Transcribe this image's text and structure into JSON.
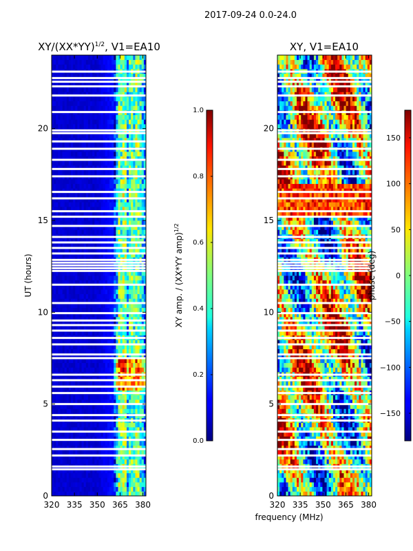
{
  "figure": {
    "suptitle": "2017-09-24 0.0-24.0"
  },
  "chart_data": [
    {
      "type": "heatmap",
      "title_main": "XY/(XX*YY)",
      "title_exp": "1/2",
      "title_tail": ", V1=EA10",
      "xlabel": "",
      "ylabel": "UT (hours)",
      "xlim": [
        320,
        382
      ],
      "ylim": [
        0,
        24
      ],
      "xticks": [
        320,
        335,
        350,
        365,
        380
      ],
      "xtick_labels": [
        "320",
        "335",
        "350",
        "365",
        "380"
      ],
      "yticks": [
        0,
        5,
        10,
        15,
        20
      ],
      "ytick_labels": [
        "0",
        "5",
        "10",
        "15",
        "20"
      ],
      "colorbar": {
        "label_main": "XY amp. / (XX*YY amp)",
        "label_exp": "1/2",
        "range": [
          0.0,
          1.0
        ],
        "ticks": [
          0.0,
          0.2,
          0.4,
          0.6,
          0.8,
          1.0
        ],
        "tick_labels": [
          "0.0",
          "0.2",
          "0.4",
          "0.6",
          "0.8",
          "1.0"
        ],
        "colormap": "jet"
      },
      "flagged_hours": [
        1.45,
        1.6,
        2.2,
        2.55,
        3.05,
        3.5,
        4.1,
        4.4,
        5.0,
        5.6,
        5.95,
        6.3,
        6.6,
        7.5,
        7.7,
        8.25,
        8.6,
        9.0,
        9.3,
        9.55,
        9.95,
        10.5,
        11.5,
        12.25,
        12.4,
        12.55,
        12.7,
        12.85,
        13.2,
        13.5,
        13.8,
        14.1,
        14.7,
        15.2,
        15.5,
        16.2,
        16.55,
        17.4,
        17.8,
        18.3,
        18.9,
        19.3,
        19.75,
        19.9,
        20.9,
        21.8,
        22.3,
        22.55,
        22.75,
        23.1
      ],
      "typical_amplitude": {
        "frequency_mhz": [
          320,
          350,
          362,
          364,
          366,
          368,
          370,
          372,
          374,
          376,
          378,
          380,
          382
        ],
        "amplitude": [
          0.08,
          0.08,
          0.15,
          0.5,
          0.45,
          0.58,
          0.32,
          0.5,
          0.38,
          0.52,
          0.42,
          0.35,
          0.2
        ]
      }
    },
    {
      "type": "heatmap",
      "title": "XY, V1=EA10",
      "xlabel": "frequency (MHz)",
      "ylabel": "",
      "xlim": [
        320,
        382
      ],
      "ylim": [
        0,
        24
      ],
      "xticks": [
        320,
        335,
        350,
        365,
        380
      ],
      "xtick_labels": [
        "320",
        "335",
        "350",
        "365",
        "380"
      ],
      "yticks": [
        0,
        5,
        10,
        15,
        20
      ],
      "ytick_labels": [
        "0",
        "5",
        "10",
        "15",
        "20"
      ],
      "colorbar": {
        "label": "phase (deg)",
        "range": [
          -180,
          180
        ],
        "ticks": [
          -150,
          -100,
          -50,
          0,
          50,
          100,
          150
        ],
        "tick_labels": [
          "−150",
          "−100",
          "−50",
          "0",
          "50",
          "100",
          "150"
        ],
        "colormap": "jet"
      },
      "flagged_hours": [
        1.45,
        1.6,
        2.2,
        2.55,
        3.05,
        3.5,
        4.1,
        4.4,
        5.0,
        5.6,
        5.95,
        6.3,
        6.6,
        7.5,
        7.7,
        8.25,
        8.6,
        9.0,
        9.3,
        9.55,
        9.95,
        10.5,
        11.5,
        12.25,
        12.4,
        12.55,
        12.7,
        12.85,
        13.2,
        13.5,
        13.8,
        14.1,
        14.7,
        15.2,
        15.5,
        16.2,
        16.55,
        17.4,
        17.8,
        18.3,
        18.9,
        19.3,
        19.75,
        19.9,
        20.9,
        21.8,
        22.3,
        22.55,
        22.75,
        23.1
      ]
    }
  ]
}
